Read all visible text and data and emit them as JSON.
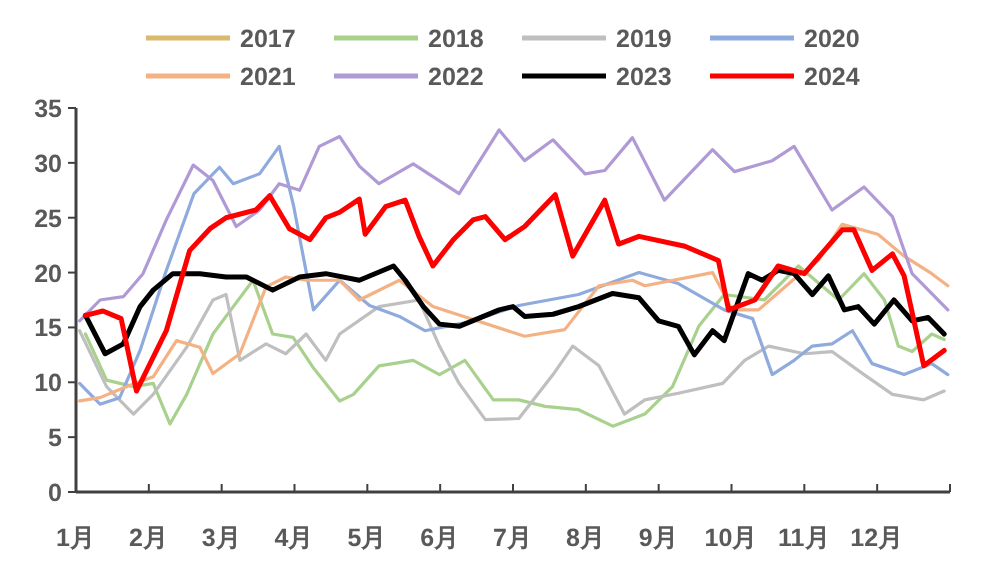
{
  "chart_data": {
    "type": "line",
    "xlim": [
      1,
      13
    ],
    "xticks": [
      {
        "value": 1,
        "label": "1月"
      },
      {
        "value": 2,
        "label": "2月"
      },
      {
        "value": 3,
        "label": "3月"
      },
      {
        "value": 4,
        "label": "4月"
      },
      {
        "value": 5,
        "label": "5月"
      },
      {
        "value": 6,
        "label": "6月"
      },
      {
        "value": 7,
        "label": "7月"
      },
      {
        "value": 8,
        "label": "8月"
      },
      {
        "value": 9,
        "label": "9月"
      },
      {
        "value": 10,
        "label": "10月"
      },
      {
        "value": 11,
        "label": "11月"
      },
      {
        "value": 12,
        "label": "12月"
      },
      {
        "value": 13,
        "label": null
      }
    ],
    "ylim": [
      0,
      35
    ],
    "yticks": [
      0,
      5,
      10,
      15,
      20,
      25,
      30,
      35
    ],
    "grid": false,
    "legend": "top",
    "line_style": "solid",
    "marker": "none",
    "series": [
      {
        "name": "2017",
        "color": "#d9b96e"
      },
      {
        "name": "2018",
        "color": "#a9d18e",
        "x": [
          1.13,
          1.42,
          1.79,
          2.06,
          2.29,
          2.52,
          2.88,
          3.16,
          3.43,
          3.7,
          3.98,
          4.25,
          4.62,
          4.81,
          5.16,
          5.63,
          5.99,
          6.34,
          6.73,
          7.08,
          7.44,
          7.9,
          8.37,
          8.81,
          9.19,
          9.55,
          9.9,
          10.45,
          10.92,
          11.47,
          11.82,
          12.1,
          12.29,
          12.48,
          12.75,
          12.92
        ],
        "values": [
          14.4,
          10.2,
          9.6,
          9.9,
          6.2,
          8.9,
          14.4,
          16.9,
          19.3,
          14.4,
          14.1,
          11.4,
          8.3,
          8.9,
          11.5,
          12,
          10.7,
          12,
          8.4,
          8.4,
          7.8,
          7.5,
          6,
          7.1,
          9.6,
          15.1,
          18,
          17.5,
          20.6,
          17.5,
          19.9,
          17.5,
          13.3,
          12.8,
          14.4,
          13.9
        ]
      },
      {
        "name": "2019",
        "color": "#bfbfbf",
        "x": [
          1.05,
          1.42,
          1.79,
          2.06,
          2.52,
          2.88,
          3.06,
          3.25,
          3.61,
          3.88,
          4.16,
          4.43,
          4.62,
          5.16,
          5.71,
          5.99,
          6.26,
          6.62,
          7.08,
          7.55,
          7.82,
          8.18,
          8.53,
          8.81,
          9.27,
          9.88,
          10.18,
          10.51,
          11,
          11.38,
          11.82,
          12.21,
          12.64,
          12.92
        ],
        "values": [
          14.7,
          9.6,
          7.1,
          8.9,
          13.2,
          17.5,
          18,
          12,
          13.5,
          12.6,
          14.4,
          12,
          14.4,
          16.9,
          17.5,
          13.3,
          9.9,
          6.6,
          6.7,
          10.7,
          13.3,
          11.5,
          7.1,
          8.4,
          9,
          9.9,
          12,
          13.3,
          12.6,
          12.8,
          10.7,
          8.9,
          8.4,
          9.2
        ]
      },
      {
        "name": "2020",
        "color": "#8faadc",
        "x": [
          1.05,
          1.33,
          1.6,
          1.88,
          2.23,
          2.62,
          2.97,
          3.16,
          3.52,
          3.79,
          3.99,
          4.26,
          4.62,
          5.03,
          5.44,
          5.79,
          6.4,
          7.08,
          7.9,
          8.73,
          9.27,
          9.9,
          10.29,
          10.56,
          10.86,
          11.11,
          11.38,
          11.66,
          11.93,
          12.37,
          12.75,
          12.97
        ],
        "values": [
          9.9,
          8,
          8.6,
          12.9,
          20,
          27.2,
          29.6,
          28.1,
          29,
          31.5,
          26,
          16.6,
          19.3,
          17,
          16,
          14.7,
          15.5,
          17,
          18,
          20,
          19,
          16.6,
          15.8,
          10.7,
          12,
          13.3,
          13.5,
          14.7,
          11.7,
          10.7,
          11.7,
          10.7
        ]
      },
      {
        "name": "2021",
        "color": "#f4b183",
        "x": [
          1.05,
          1.33,
          1.69,
          2.06,
          2.38,
          2.7,
          2.88,
          3.25,
          3.61,
          3.88,
          4.16,
          4.62,
          4.89,
          5.44,
          5.9,
          7.16,
          7.71,
          8.18,
          8.64,
          8.81,
          9.74,
          10.01,
          10.37,
          10.84,
          11.19,
          11.52,
          11.68,
          12.01,
          12.37,
          12.75,
          12.97
        ],
        "values": [
          8.3,
          8.6,
          9.6,
          10.5,
          13.8,
          13.2,
          10.8,
          12.6,
          18.7,
          19.6,
          19.3,
          19.3,
          17.5,
          19.3,
          16.9,
          14.2,
          14.8,
          18.8,
          19.3,
          18.8,
          20,
          16.6,
          16.6,
          19.3,
          21.1,
          24.4,
          24.1,
          23.5,
          21.5,
          19.9,
          18.8
        ]
      },
      {
        "name": "2022",
        "color": "#b09ad6",
        "x": [
          1.05,
          1.33,
          1.65,
          1.92,
          2.24,
          2.61,
          2.88,
          3.2,
          3.52,
          3.79,
          4.07,
          4.34,
          4.62,
          4.89,
          5.16,
          5.63,
          6.26,
          6.81,
          7.16,
          7.55,
          7.99,
          8.26,
          8.64,
          9.08,
          9.74,
          10.04,
          10.56,
          10.86,
          11.38,
          11.82,
          12.21,
          12.48,
          12.97
        ],
        "values": [
          15.6,
          17.5,
          17.8,
          19.9,
          24.8,
          29.8,
          28.4,
          24.2,
          25.7,
          28.1,
          27.5,
          31.5,
          32.4,
          29.7,
          28.1,
          29.9,
          27.2,
          33,
          30.2,
          32.1,
          29,
          29.3,
          32.3,
          26.6,
          31.2,
          29.2,
          30.2,
          31.5,
          25.7,
          27.8,
          25.1,
          19.9,
          16.6
        ]
      },
      {
        "name": "2023",
        "color": "#000000",
        "x": [
          1.13,
          1.4,
          1.65,
          1.88,
          2.06,
          2.33,
          2.7,
          3.06,
          3.34,
          3.7,
          4.07,
          4.43,
          4.89,
          5.36,
          5.52,
          5.77,
          5.99,
          6.26,
          6.81,
          7,
          7.16,
          7.55,
          7.9,
          8.37,
          8.73,
          9,
          9.27,
          9.49,
          9.74,
          9.9,
          10.23,
          10.42,
          10.64,
          10.86,
          11.11,
          11.33,
          11.55,
          11.74,
          11.96,
          12.23,
          12.48,
          12.7,
          12.92
        ],
        "values": [
          16.1,
          12.6,
          13.5,
          16.9,
          18.4,
          19.9,
          19.9,
          19.6,
          19.6,
          18.4,
          19.6,
          19.9,
          19.3,
          20.6,
          19.3,
          16.9,
          15.3,
          15.1,
          16.6,
          16.9,
          16,
          16.2,
          16.9,
          18.1,
          17.7,
          15.6,
          15.1,
          12.5,
          14.7,
          13.8,
          19.9,
          19.3,
          20.2,
          19.9,
          18,
          19.7,
          16.6,
          16.9,
          15.3,
          17.5,
          15.6,
          15.9,
          14.4
        ]
      },
      {
        "name": "2024",
        "color": "#ff0000",
        "x": [
          1.13,
          1.37,
          1.62,
          1.83,
          2.24,
          2.56,
          2.84,
          3.06,
          3.47,
          3.66,
          3.93,
          4.21,
          4.43,
          4.62,
          4.89,
          4.97,
          5.25,
          5.52,
          5.71,
          5.9,
          6.18,
          6.45,
          6.62,
          6.89,
          7.16,
          7.58,
          7.82,
          8.26,
          8.45,
          8.73,
          9.36,
          9.82,
          9.96,
          10.32,
          10.64,
          11,
          11.52,
          11.68,
          11.93,
          12.21,
          12.37,
          12.64,
          12.92
        ],
        "values": [
          16.1,
          16.5,
          15.8,
          9.2,
          14.7,
          22,
          24,
          25,
          25.7,
          27,
          24,
          23,
          25,
          25.5,
          26.7,
          23.5,
          26,
          26.6,
          23.3,
          20.6,
          23,
          24.8,
          25.1,
          23,
          24.2,
          27.1,
          21.5,
          26.6,
          22.6,
          23.3,
          22.4,
          21.1,
          16.6,
          17.5,
          20.6,
          19.9,
          23.9,
          23.9,
          20.2,
          21.7,
          19.7,
          11.5,
          12.9
        ]
      }
    ]
  }
}
